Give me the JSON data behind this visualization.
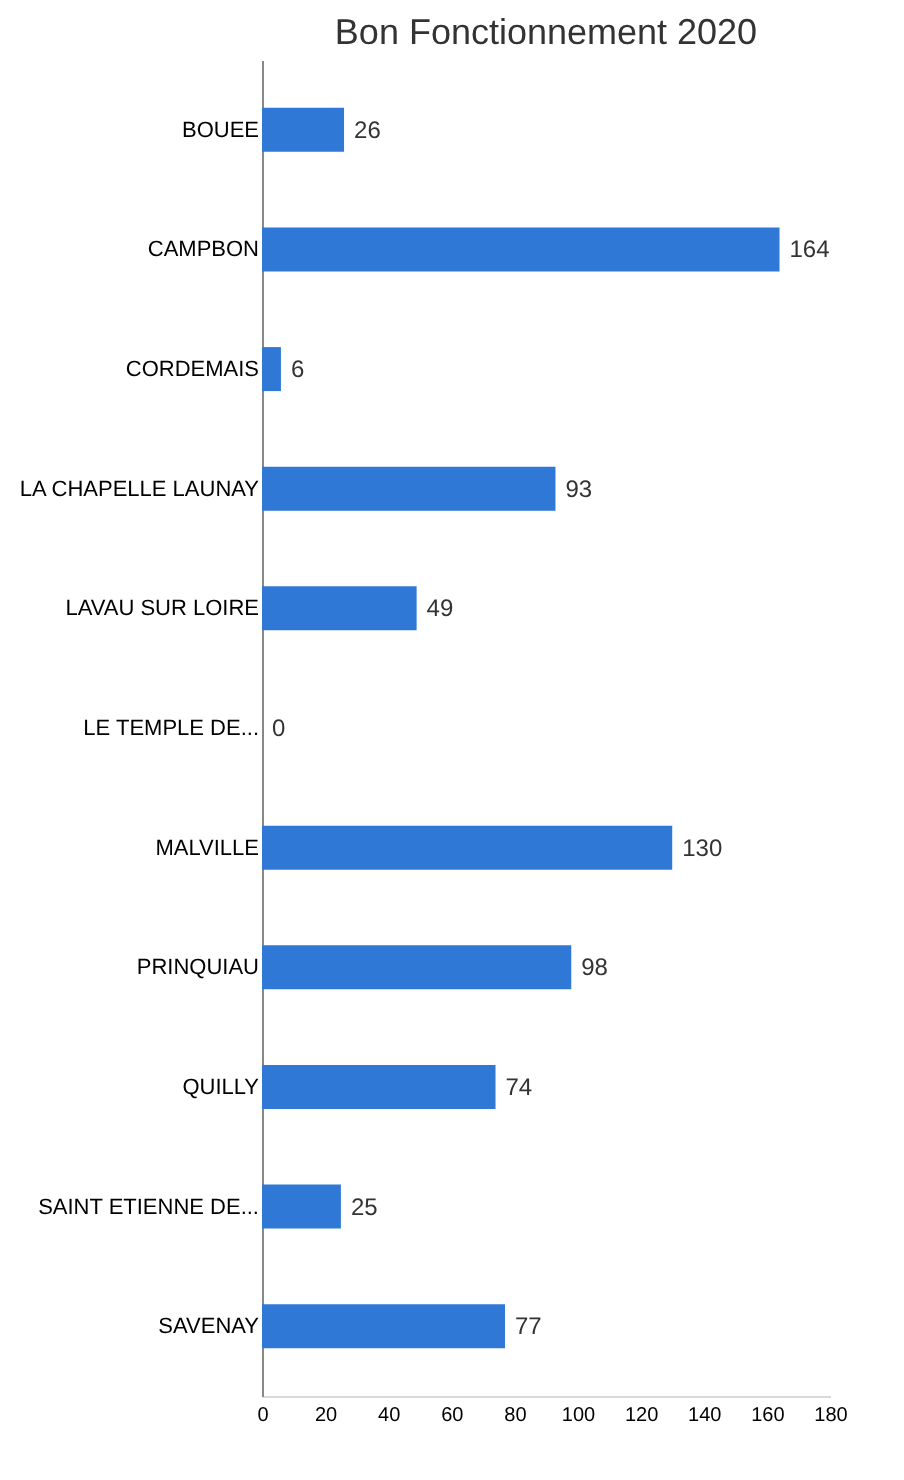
{
  "chart_data": {
    "type": "bar",
    "title": "Bon Fonctionnement 2020",
    "orientation": "horizontal",
    "categories": [
      "BOUEE",
      "CAMPBON",
      "CORDEMAIS",
      "LA CHAPELLE LAUNAY",
      "LAVAU SUR LOIRE",
      "LE TEMPLE DE...",
      "MALVILLE",
      "PRINQUIAU",
      "QUILLY",
      "SAINT ETIENNE DE...",
      "SAVENAY"
    ],
    "values": [
      26,
      164,
      6,
      93,
      49,
      0,
      130,
      98,
      74,
      25,
      77
    ],
    "color": "#2f78d6",
    "xlim": [
      0,
      180
    ],
    "xticks": [
      0,
      20,
      40,
      60,
      80,
      100,
      120,
      140,
      160,
      180
    ],
    "data_labels": true
  }
}
